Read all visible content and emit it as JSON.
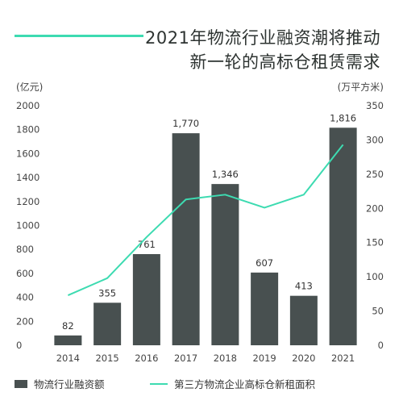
{
  "title_line1": "2021年物流行业融资潮将推动",
  "title_line2": "新一轮的高标仓租赁需求",
  "chart_data": {
    "type": "bar",
    "categories": [
      "2014",
      "2015",
      "2016",
      "2017",
      "2018",
      "2019",
      "2020",
      "2021"
    ],
    "series": [
      {
        "name": "物流行业融资额",
        "type": "bar",
        "axis": "left",
        "values": [
          82,
          355,
          761,
          1770,
          1346,
          607,
          413,
          1816
        ],
        "labels": [
          "82",
          "355",
          "761",
          "1,770",
          "1,346",
          "607",
          "413",
          "1,816"
        ],
        "color": "#485050"
      },
      {
        "name": "第三方物流企业高标仓新租面积",
        "type": "line",
        "axis": "right",
        "values": [
          73,
          98,
          158,
          213,
          220,
          201,
          220,
          293
        ],
        "color": "#3ddbb1"
      }
    ],
    "left_axis": {
      "unit": "(亿元)",
      "ylim": [
        0,
        2000
      ],
      "ticks": [
        "0",
        "200",
        "400",
        "600",
        "800",
        "1000",
        "1200",
        "1400",
        "1600",
        "1800",
        "2000"
      ]
    },
    "right_axis": {
      "unit": "(万平方米)",
      "ylim": [
        0,
        350
      ],
      "ticks": [
        "0",
        "50",
        "100",
        "150",
        "200",
        "250",
        "300",
        "350"
      ]
    },
    "grid": false,
    "legend_position": "bottom"
  }
}
